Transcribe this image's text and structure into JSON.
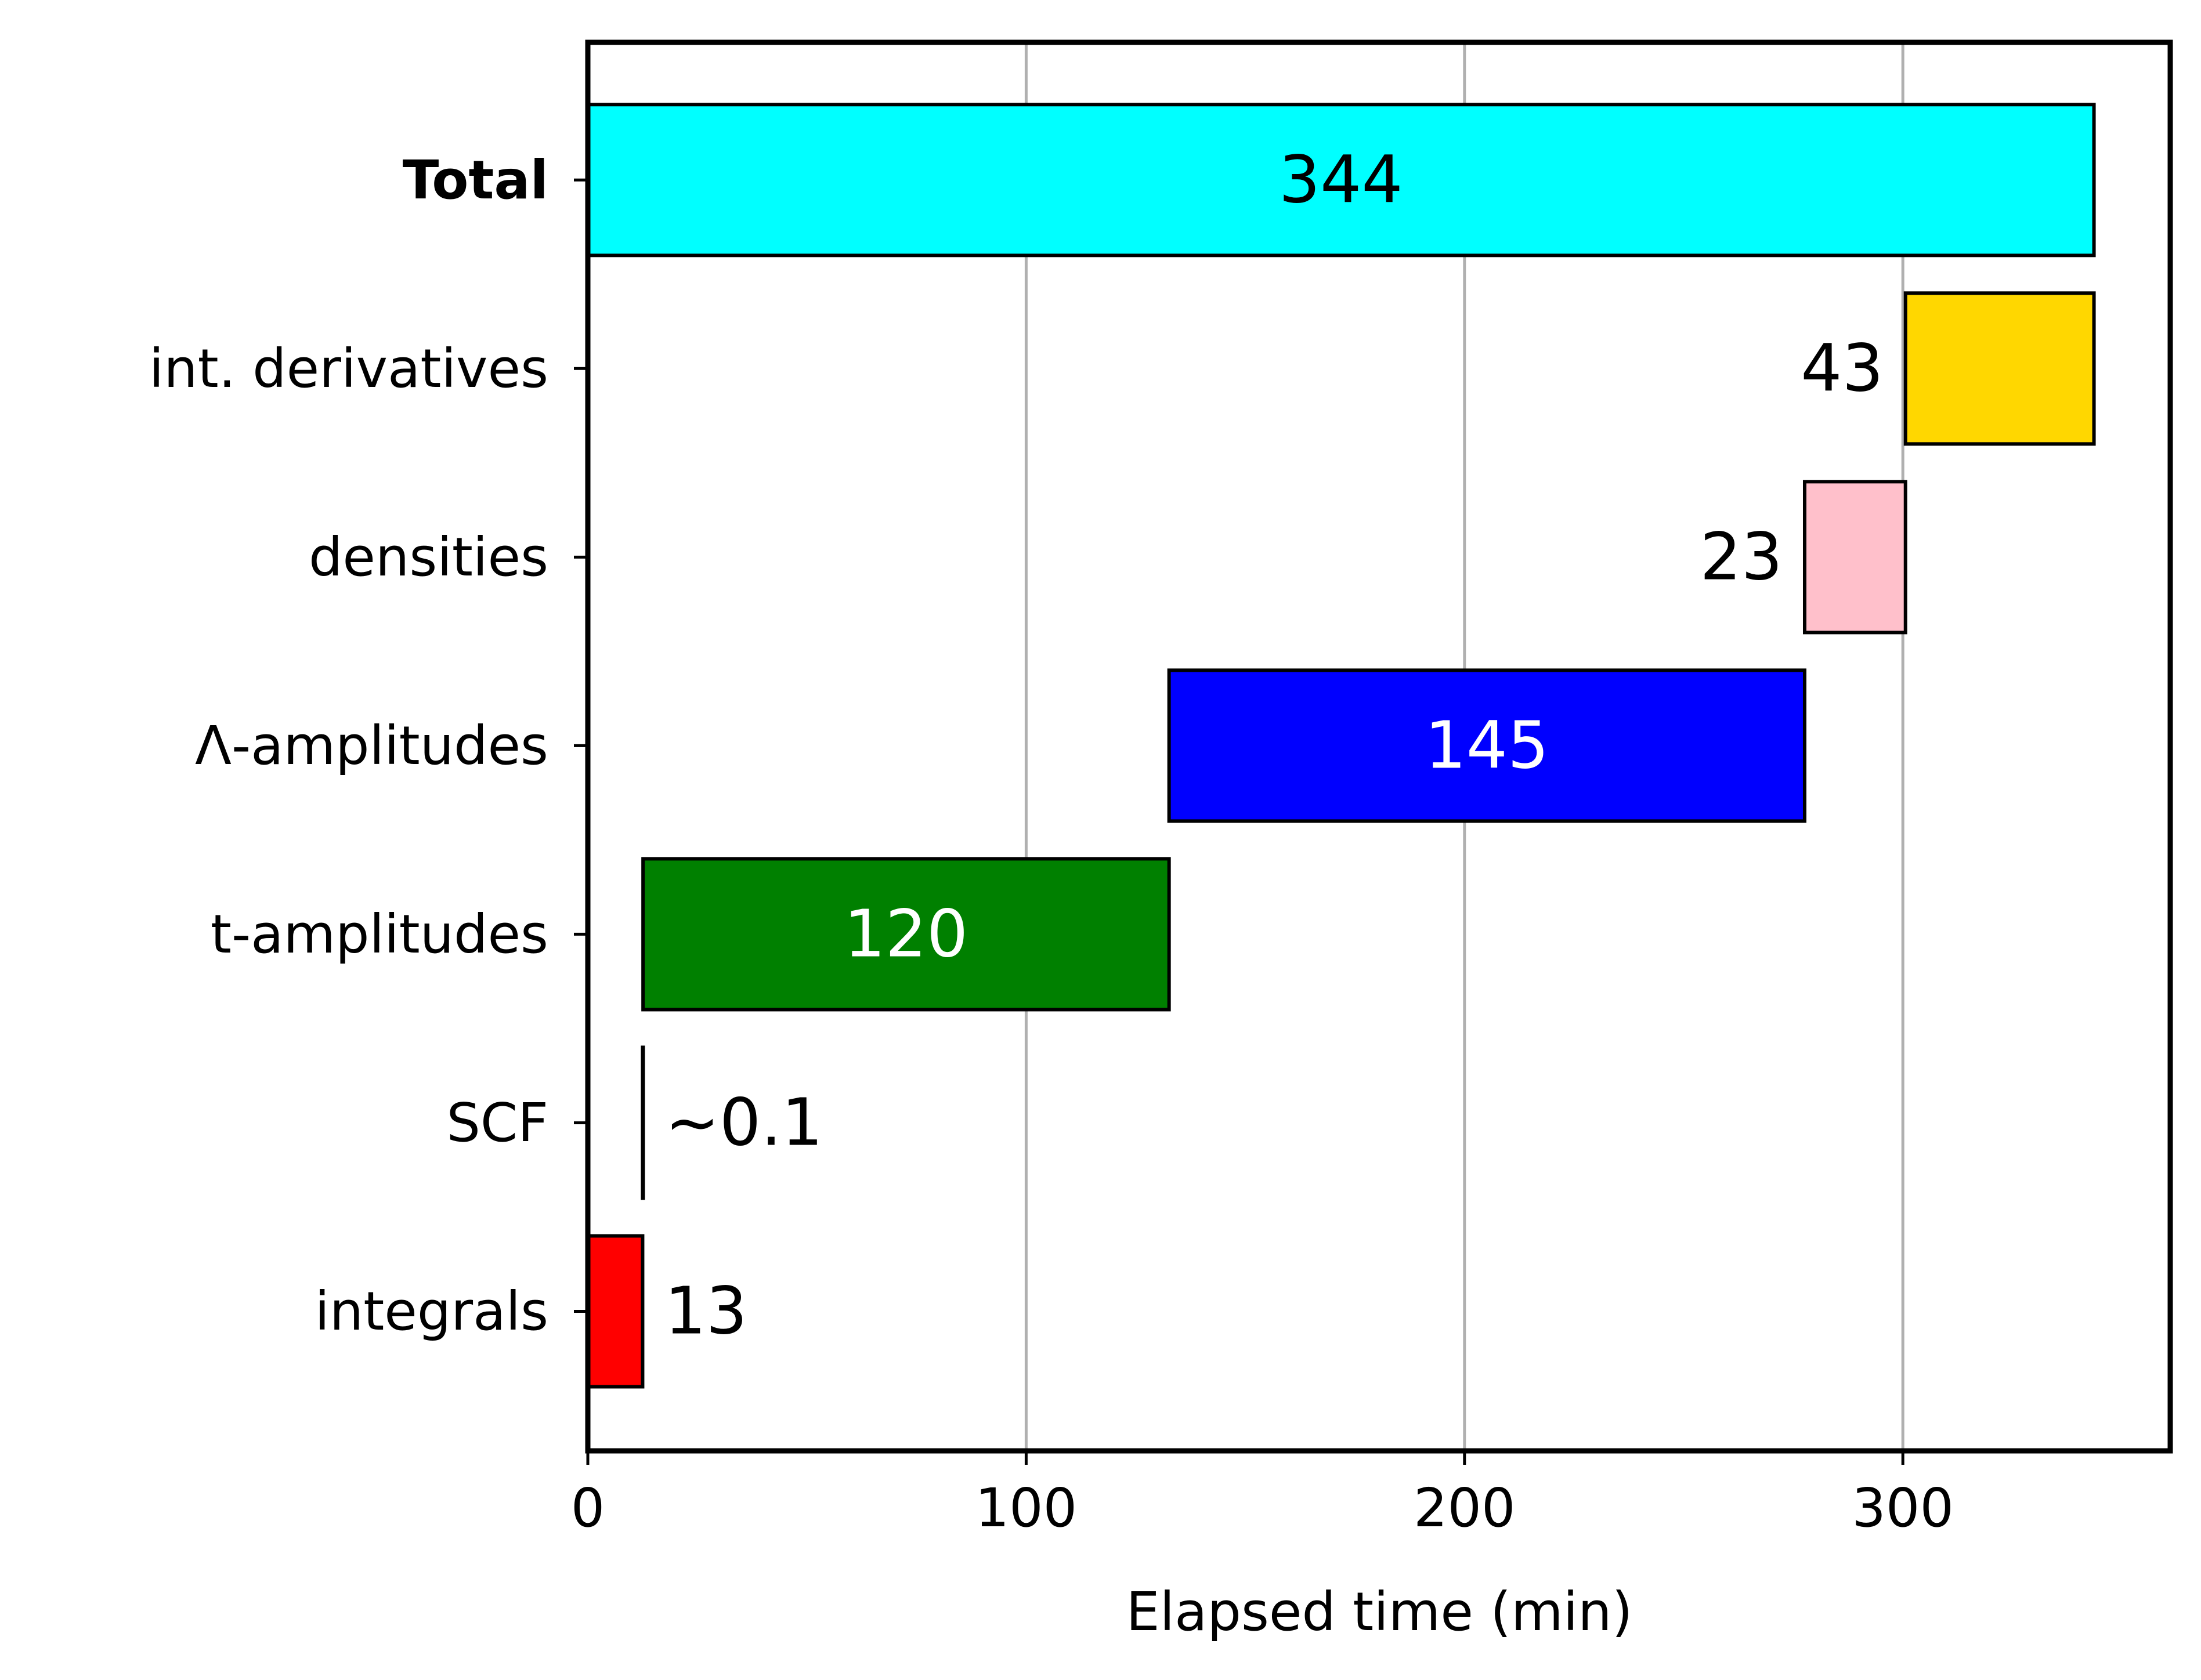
{
  "chart_data": {
    "type": "bar",
    "orientation": "horizontal",
    "kind": "waterfall",
    "xlabel": "Elapsed time (min)",
    "xlim": [
      0,
      361
    ],
    "xticks": [
      0,
      100,
      200,
      300
    ],
    "grid": {
      "x": true,
      "y": false
    },
    "categories": [
      "integrals",
      "SCF",
      "t-amplitudes",
      "Λ-amplitudes",
      "densities",
      "int. derivatives",
      "Total"
    ],
    "bars": [
      {
        "category": "integrals",
        "start": 0,
        "value": 12.5,
        "label": "13",
        "color": "#ff0000",
        "label_color": "#000000",
        "label_position": "outside-right"
      },
      {
        "category": "SCF",
        "start": 12.5,
        "value": 0.1,
        "label": "~0.1",
        "color": "#000000",
        "label_color": "#000000",
        "label_position": "outside-right"
      },
      {
        "category": "t-amplitudes",
        "start": 12.6,
        "value": 120,
        "label": "120",
        "color": "#008000",
        "label_color": "#ffffff",
        "label_position": "center"
      },
      {
        "category": "Λ-amplitudes",
        "start": 132.6,
        "value": 145,
        "label": "145",
        "color": "#0000ff",
        "label_color": "#ffffff",
        "label_position": "center"
      },
      {
        "category": "densities",
        "start": 277.6,
        "value": 23,
        "label": "23",
        "color": "#ffc0cb",
        "label_color": "#000000",
        "label_position": "outside-left"
      },
      {
        "category": "int. derivatives",
        "start": 300.6,
        "value": 43,
        "label": "43",
        "color": "#ffd700",
        "label_color": "#000000",
        "label_position": "outside-left"
      },
      {
        "category": "Total",
        "start": 0,
        "value": 343.6,
        "label": "344",
        "color": "#00ffff",
        "label_color": "#000000",
        "label_position": "center",
        "bold_category": true
      }
    ]
  }
}
